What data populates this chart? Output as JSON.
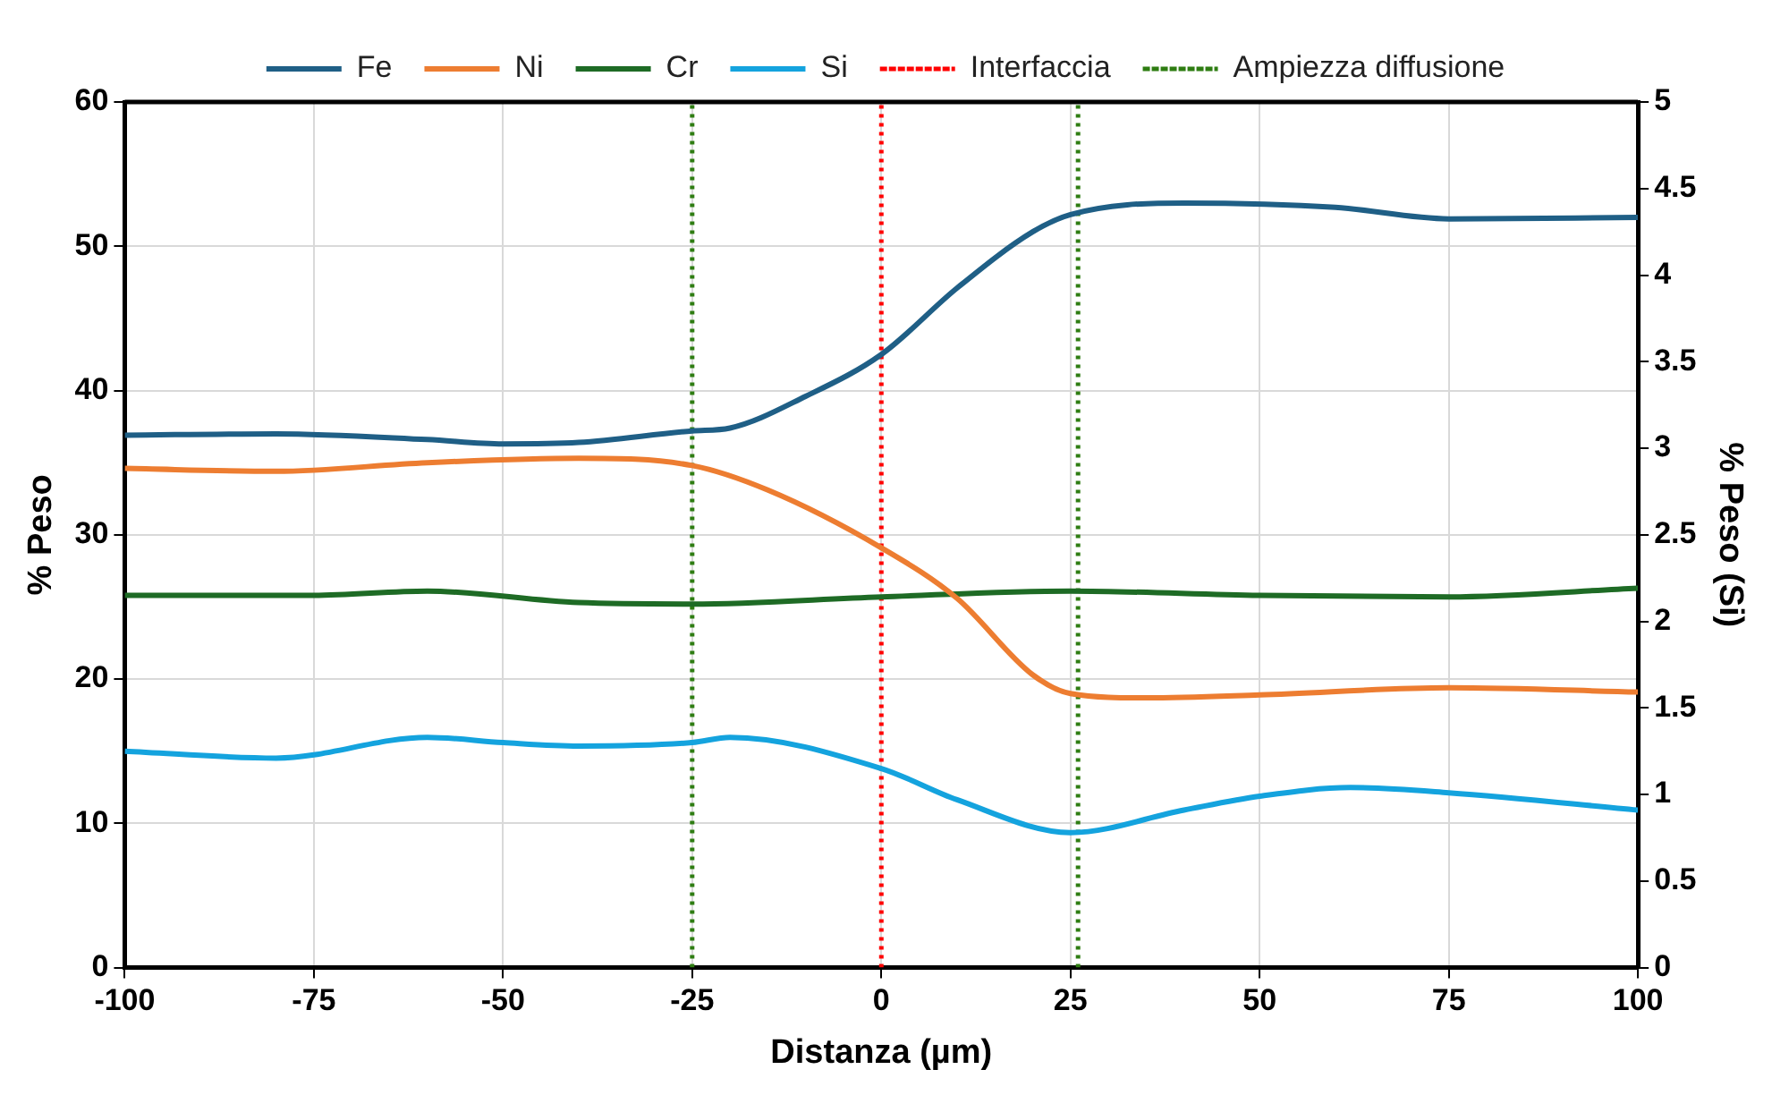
{
  "chart_data": {
    "type": "line",
    "xlabel": "Distanza (µm)",
    "ylabel": "% Peso",
    "y2label": "% Peso (Si)",
    "xlim": [
      -100,
      100
    ],
    "xticks": [
      -100,
      -75,
      -50,
      -25,
      0,
      25,
      50,
      75,
      100
    ],
    "ylim": [
      0,
      60
    ],
    "yticks": [
      0,
      10,
      20,
      30,
      40,
      50,
      60
    ],
    "y2lim": [
      0,
      5
    ],
    "y2ticks": [
      0,
      0.5,
      1,
      1.5,
      2,
      2.5,
      3,
      3.5,
      4,
      4.5,
      5
    ],
    "grid": true,
    "legend": "top",
    "marker": "none",
    "line_style": "solid",
    "series": [
      {
        "name": "Fe",
        "color": "#1f5f86",
        "x": [
          -100,
          -80,
          -60,
          -50,
          -40,
          -25,
          -20,
          -10,
          0,
          10,
          20,
          25,
          40,
          60,
          75,
          100
        ],
        "values": [
          36.9,
          37.0,
          36.6,
          36.3,
          36.4,
          37.2,
          37.4,
          39.6,
          42.5,
          47.1,
          51.0,
          52.2,
          53.0,
          52.7,
          51.9,
          52.0
        ]
      },
      {
        "name": "Ni",
        "color": "#ed7d31",
        "x": [
          -100,
          -80,
          -60,
          -40,
          -25,
          -15,
          0,
          10,
          20,
          25,
          35,
          50,
          75,
          100
        ],
        "values": [
          34.6,
          34.4,
          35.0,
          35.3,
          34.8,
          33.1,
          29.1,
          25.6,
          20.3,
          19.0,
          18.7,
          18.9,
          19.4,
          19.1
        ]
      },
      {
        "name": "Cr",
        "color": "#1e6b25",
        "x": [
          -100,
          -75,
          -60,
          -40,
          -25,
          0,
          25,
          50,
          75,
          100
        ],
        "values": [
          25.8,
          25.8,
          26.1,
          25.3,
          25.2,
          25.7,
          26.1,
          25.8,
          25.7,
          26.3
        ]
      },
      {
        "name": "Si",
        "color": "#14a3de",
        "axis": "y2",
        "x": [
          -100,
          -80,
          -60,
          -50,
          -40,
          -25,
          -20,
          0,
          10,
          25,
          40,
          50,
          62,
          75,
          100
        ],
        "values": [
          1.25,
          1.21,
          1.33,
          1.3,
          1.28,
          1.3,
          1.33,
          1.15,
          0.97,
          0.78,
          0.91,
          0.99,
          1.04,
          1.01,
          0.91
        ]
      }
    ],
    "ref_lines": [
      {
        "axis": "x",
        "value": 0,
        "label": "Interfaccia",
        "color": "#ff0000",
        "line_style": "dotted"
      },
      {
        "axis": "x",
        "value": -25,
        "label": "Ampiezza diffusione",
        "color": "#2e7d12",
        "line_style": "dotted"
      },
      {
        "axis": "x",
        "value": 26,
        "color": "#2e7d12",
        "line_style": "dotted"
      }
    ]
  }
}
